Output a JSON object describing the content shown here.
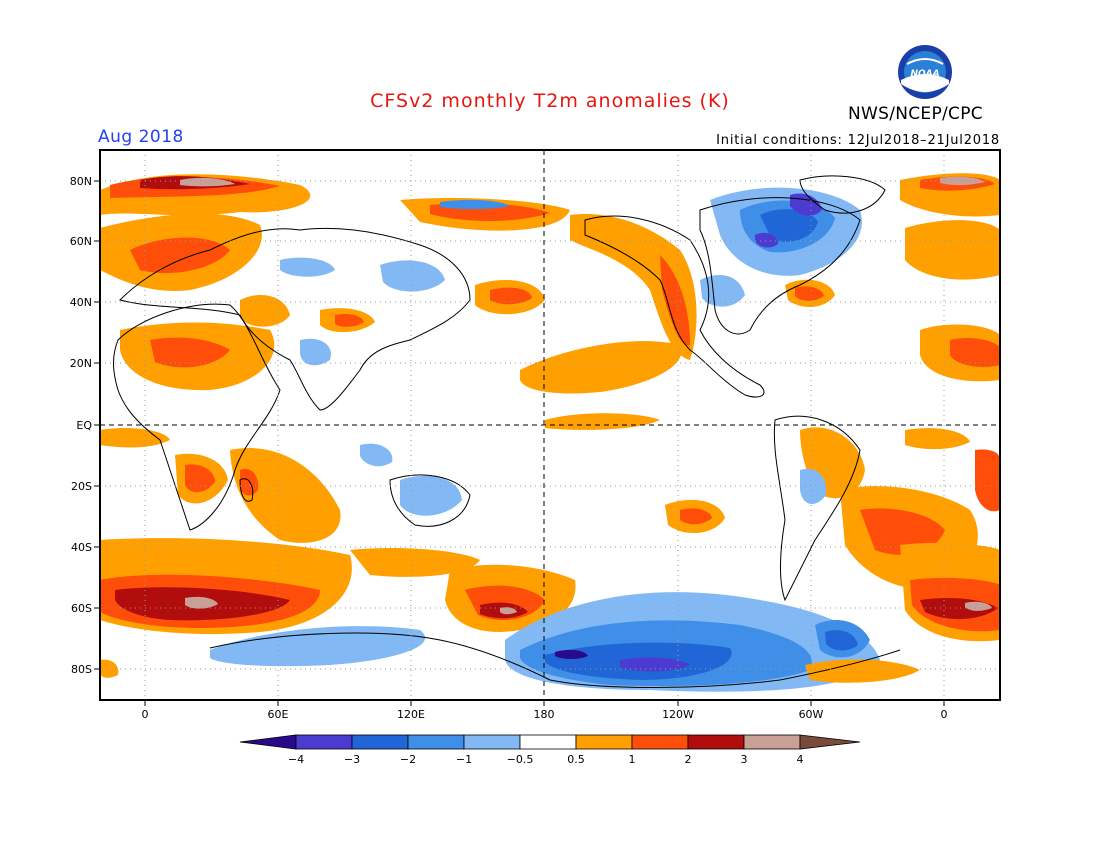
{
  "header": {
    "title": "CFSv2 monthly T2m anomalies (K)",
    "month": "Aug 2018",
    "initial_conditions": "Initial conditions: 12Jul2018–21Jul2018",
    "agency": "NWS/NCEP/CPC",
    "logo_text": "NOAA"
  },
  "map": {
    "lat_labels": [
      "80N",
      "60N",
      "40N",
      "20N",
      "EQ",
      "20S",
      "40S",
      "60S",
      "80S"
    ],
    "lon_labels": [
      "0",
      "60E",
      "120E",
      "180",
      "120W",
      "60W",
      "0"
    ]
  },
  "colorbar": {
    "labels": [
      "−4",
      "−3",
      "−2",
      "−1",
      "−0.5",
      "0.5",
      "1",
      "2",
      "3",
      "4"
    ],
    "colors": [
      "#2a0a8c",
      "#4b3bd0",
      "#2166d6",
      "#3f8ee8",
      "#82b9f4",
      "#ffffff",
      "#ff9f00",
      "#ff4d0a",
      "#b20d0d",
      "#c9a095",
      "#7a4a3a"
    ]
  }
}
